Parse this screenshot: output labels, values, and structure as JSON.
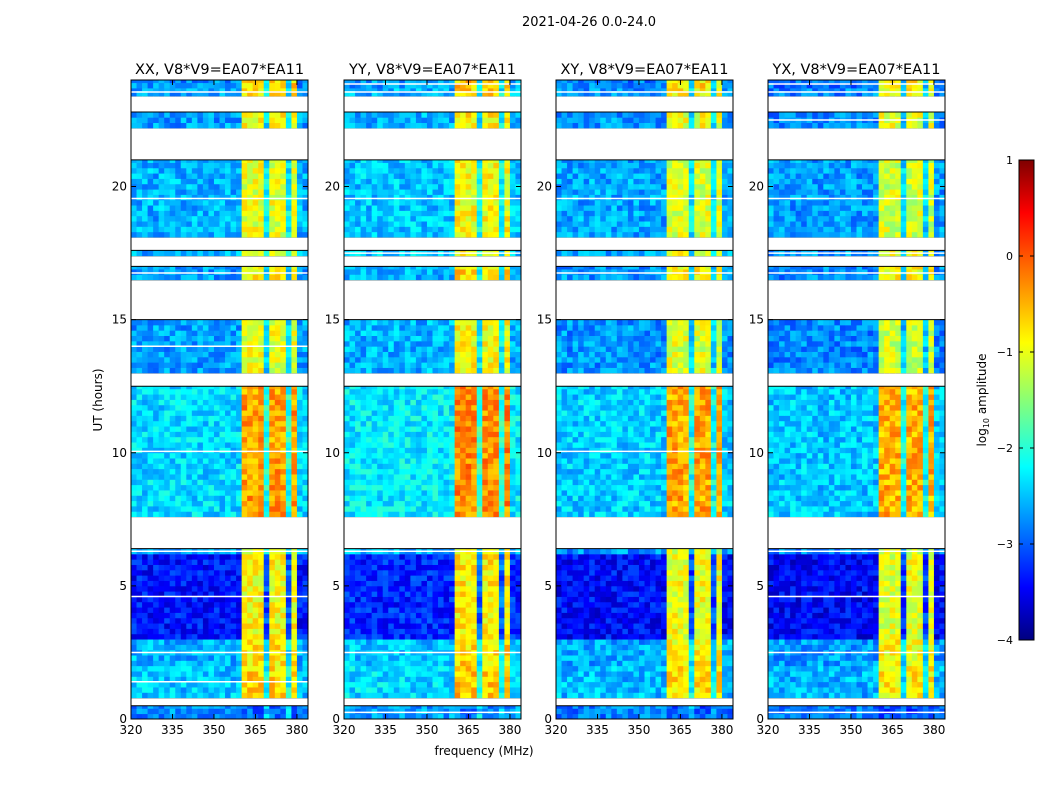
{
  "chart_data": {
    "type": "heatmap",
    "title": "2021-04-26 0.0-24.0",
    "xlabel": "frequency (MHz)",
    "ylabel": "UT (hours)",
    "xlim": [
      320,
      384
    ],
    "ylim": [
      0,
      24
    ],
    "xticks": [
      320,
      335,
      350,
      365,
      380
    ],
    "yticks": [
      0,
      5,
      10,
      15,
      20
    ],
    "panels": [
      {
        "title": "XX, V8*V9=EA07*EA11",
        "offset": 0.0
      },
      {
        "title": "YY, V8*V9=EA07*EA11",
        "offset": 0.1
      },
      {
        "title": "XY, V8*V9=EA07*EA11",
        "offset": -0.05
      },
      {
        "title": "YX, V8*V9=EA07*EA11",
        "offset": -0.1
      }
    ],
    "frequency_profile": [
      {
        "start": 320,
        "end": 360.5,
        "kind": "background"
      },
      {
        "start": 360.5,
        "end": 369,
        "kind": "rfi"
      },
      {
        "start": 369,
        "end": 370,
        "kind": "gap"
      },
      {
        "start": 370,
        "end": 373.5,
        "kind": "rfi"
      },
      {
        "start": 373.5,
        "end": 374.5,
        "kind": "gap"
      },
      {
        "start": 374.5,
        "end": 377,
        "kind": "rfi"
      },
      {
        "start": 377,
        "end": 378,
        "kind": "gap"
      },
      {
        "start": 378,
        "end": 380.5,
        "kind": "rfi"
      },
      {
        "start": 380.5,
        "end": 384,
        "kind": "background"
      }
    ],
    "time_segments": [
      {
        "start": 0.0,
        "end": 0.5,
        "flagged": false,
        "background": -2.7,
        "rfi": -2.9
      },
      {
        "start": 0.5,
        "end": 0.8,
        "flagged": true
      },
      {
        "start": 0.8,
        "end": 2.0,
        "flagged": false,
        "background": -2.4,
        "rfi": -0.7
      },
      {
        "start": 2.0,
        "end": 3.0,
        "flagged": false,
        "background": -2.5,
        "rfi": -0.8
      },
      {
        "start": 3.0,
        "end": 6.2,
        "flagged": false,
        "background": -3.3,
        "rfi": -0.9
      },
      {
        "start": 6.2,
        "end": 6.4,
        "flagged": false,
        "background": -2.6,
        "rfi": -1.0
      },
      {
        "start": 6.4,
        "end": 7.6,
        "flagged": true
      },
      {
        "start": 7.6,
        "end": 12.5,
        "flagged": false,
        "background": -2.3,
        "rfi": -0.4
      },
      {
        "start": 12.5,
        "end": 13.0,
        "flagged": true
      },
      {
        "start": 13.0,
        "end": 15.0,
        "flagged": false,
        "background": -2.6,
        "rfi": -1.0
      },
      {
        "start": 15.0,
        "end": 16.5,
        "flagged": true
      },
      {
        "start": 16.5,
        "end": 17.0,
        "flagged": false,
        "background": -2.6,
        "rfi": -0.8
      },
      {
        "start": 17.0,
        "end": 17.4,
        "flagged": true
      },
      {
        "start": 17.4,
        "end": 17.6,
        "flagged": false,
        "background": -2.5,
        "rfi": -0.9
      },
      {
        "start": 17.6,
        "end": 18.1,
        "flagged": true
      },
      {
        "start": 18.1,
        "end": 21.0,
        "flagged": false,
        "background": -2.5,
        "rfi": -1.0
      },
      {
        "start": 21.0,
        "end": 22.2,
        "flagged": true
      },
      {
        "start": 22.2,
        "end": 22.8,
        "flagged": false,
        "background": -2.6,
        "rfi": -0.9
      },
      {
        "start": 22.8,
        "end": 23.4,
        "flagged": true
      },
      {
        "start": 23.4,
        "end": 23.7,
        "flagged": false,
        "background": -2.6,
        "rfi": -0.8
      },
      {
        "start": 23.7,
        "end": 24.0,
        "flagged": false,
        "background": -2.7,
        "rfi": -0.7
      }
    ],
    "colorbar": {
      "label_main": "log",
      "label_sub": "10",
      "label_rest": " amplitude",
      "range": [
        -4,
        1
      ],
      "ticks": [
        "1",
        "0",
        "−1",
        "−2",
        "−3",
        "−4"
      ],
      "tick_values": [
        1,
        0,
        -1,
        -2,
        -3,
        -4
      ],
      "colormap": "jet"
    },
    "ytick_labels": [
      "0",
      "5",
      "10",
      "15",
      "20"
    ],
    "xtick_labels": [
      "320",
      "335",
      "350",
      "365",
      "380"
    ]
  }
}
